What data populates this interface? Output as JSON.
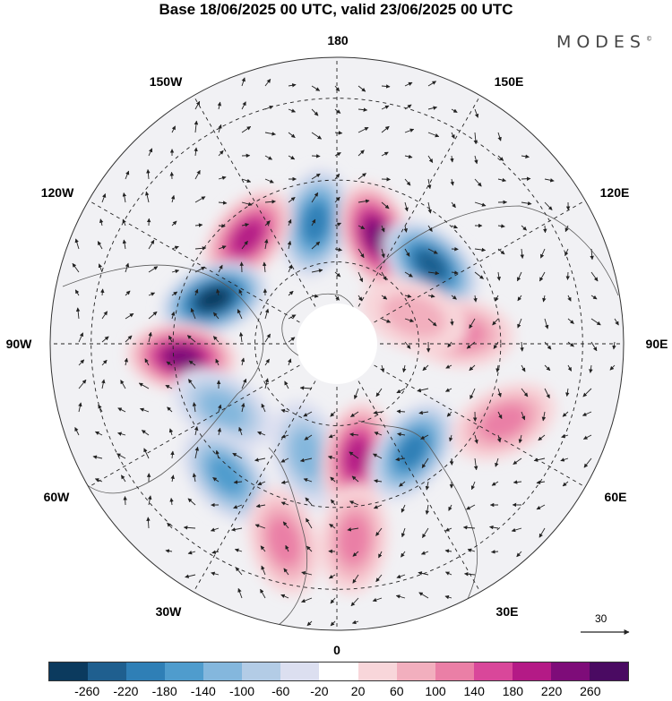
{
  "title": "Base 18/06/2025 00 UTC, valid 23/06/2025 00 UTC",
  "brand": "MODES",
  "brand_mark": "©",
  "longitude_labels": {
    "lon_180": "180",
    "lon_150e": "150E",
    "lon_120e": "120E",
    "lon_90e": "90E",
    "lon_60e": "60E",
    "lon_30e": "30E",
    "lon_0": "0",
    "lon_30w": "30W",
    "lon_60w": "60W",
    "lon_90w": "90W",
    "lon_120w": "120W",
    "lon_150w": "150W"
  },
  "reference_vector": {
    "value": "30"
  },
  "colorbar": {
    "colors": [
      "#0b3a5e",
      "#1f5f8f",
      "#2f7fb6",
      "#4f9ccd",
      "#84b7dd",
      "#b3cce6",
      "#dcdff0",
      "#ffffff",
      "#f8d6da",
      "#f2afbe",
      "#ea7fa6",
      "#d9479a",
      "#b41a86",
      "#7e0c79",
      "#4a0a62"
    ],
    "ticks": [
      "-260",
      "-220",
      "-180",
      "-140",
      "-100",
      "-60",
      "-20",
      "20",
      "60",
      "100",
      "140",
      "180",
      "220",
      "260"
    ]
  },
  "anomaly_centers": [
    {
      "lon_deg": 190,
      "lat_deg": 60,
      "value": -180
    },
    {
      "lon_deg": 160,
      "lat_deg": 62,
      "value": 220
    },
    {
      "lon_deg": 130,
      "lat_deg": 60,
      "value": -200
    },
    {
      "lon_deg": 220,
      "lat_deg": 56,
      "value": 150
    },
    {
      "lon_deg": 250,
      "lat_deg": 58,
      "value": -260
    },
    {
      "lon_deg": 275,
      "lat_deg": 52,
      "value": 200
    },
    {
      "lon_deg": 300,
      "lat_deg": 58,
      "value": -100
    },
    {
      "lon_deg": 320,
      "lat_deg": 48,
      "value": -120
    },
    {
      "lon_deg": 345,
      "lat_deg": 62,
      "value": -90
    },
    {
      "lon_deg": 10,
      "lat_deg": 62,
      "value": 170
    },
    {
      "lon_deg": 35,
      "lat_deg": 58,
      "value": -150
    },
    {
      "lon_deg": 65,
      "lat_deg": 45,
      "value": 100
    },
    {
      "lon_deg": 95,
      "lat_deg": 60,
      "value": 70
    },
    {
      "lon_deg": 110,
      "lat_deg": 70,
      "value": 60
    },
    {
      "lon_deg": 345,
      "lat_deg": 40,
      "value": 80
    },
    {
      "lon_deg": 5,
      "lat_deg": 42,
      "value": 90
    }
  ]
}
